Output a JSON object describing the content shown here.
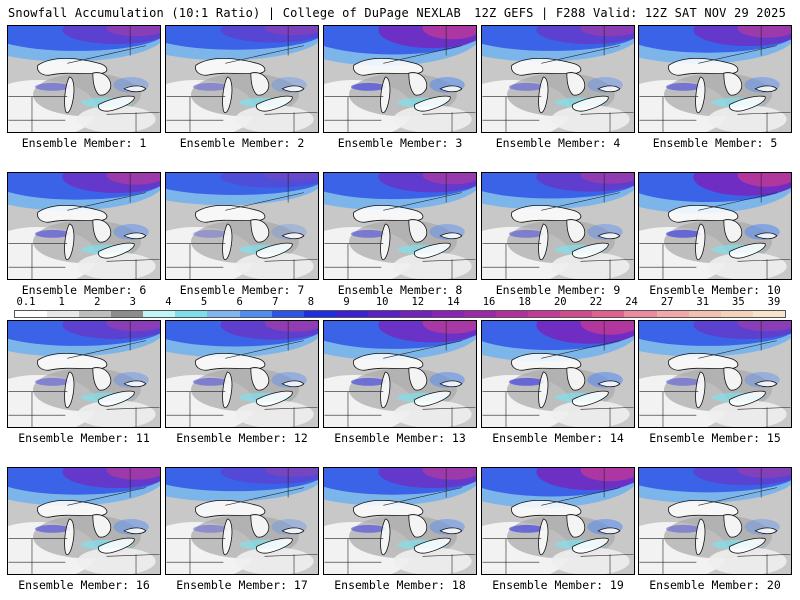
{
  "header": {
    "left_title": "Snowfall Accumulation (10:1 Ratio) | College of DuPage NEXLAB",
    "right_title": "12Z GEFS | F288 Valid: 12Z SAT NOV 29 2025"
  },
  "panels": [
    {
      "label": "Ensemble Member: 1",
      "intensity": 0.45
    },
    {
      "label": "Ensemble Member: 2",
      "intensity": 0.35
    },
    {
      "label": "Ensemble Member: 3",
      "intensity": 0.75
    },
    {
      "label": "Ensemble Member: 4",
      "intensity": 0.45
    },
    {
      "label": "Ensemble Member: 5",
      "intensity": 0.6
    },
    {
      "label": "Ensemble Member: 6",
      "intensity": 0.6
    },
    {
      "label": "Ensemble Member: 7",
      "intensity": 0.2
    },
    {
      "label": "Ensemble Member: 8",
      "intensity": 0.55
    },
    {
      "label": "Ensemble Member: 9",
      "intensity": 0.5
    },
    {
      "label": "Ensemble Member: 10",
      "intensity": 0.8
    },
    {
      "label": "Ensemble Member: 11",
      "intensity": 0.45
    },
    {
      "label": "Ensemble Member: 12",
      "intensity": 0.5
    },
    {
      "label": "Ensemble Member: 13",
      "intensity": 0.7
    },
    {
      "label": "Ensemble Member: 14",
      "intensity": 0.8
    },
    {
      "label": "Ensemble Member: 15",
      "intensity": 0.45
    },
    {
      "label": "Ensemble Member: 16",
      "intensity": 0.6
    },
    {
      "label": "Ensemble Member: 17",
      "intensity": 0.3
    },
    {
      "label": "Ensemble Member: 18",
      "intensity": 0.6
    },
    {
      "label": "Ensemble Member: 19",
      "intensity": 0.75
    },
    {
      "label": "Ensemble Member: 20",
      "intensity": 0.4
    }
  ],
  "colorbar": {
    "ticks": [
      "0.1",
      "1",
      "2",
      "3",
      "4",
      "5",
      "6",
      "7",
      "8",
      "9",
      "10",
      "12",
      "14",
      "16",
      "18",
      "20",
      "22",
      "24",
      "27",
      "31",
      "35",
      "39"
    ],
    "colors": [
      "#ffffff",
      "#e8e8e8",
      "#bdbdbd",
      "#8c8c8c",
      "#bff5f5",
      "#7ce0ec",
      "#7fb6f2",
      "#4f8ef0",
      "#2a55e8",
      "#1f2ee0",
      "#3b22d4",
      "#5a20c8",
      "#7420bc",
      "#8a24b4",
      "#9c28a8",
      "#b0309e",
      "#c23a96",
      "#d24a8e",
      "#e06090",
      "#ec8aa0",
      "#f0a8a8",
      "#f4c0b0",
      "#f6d4bc",
      "#f8e4cc"
    ]
  }
}
